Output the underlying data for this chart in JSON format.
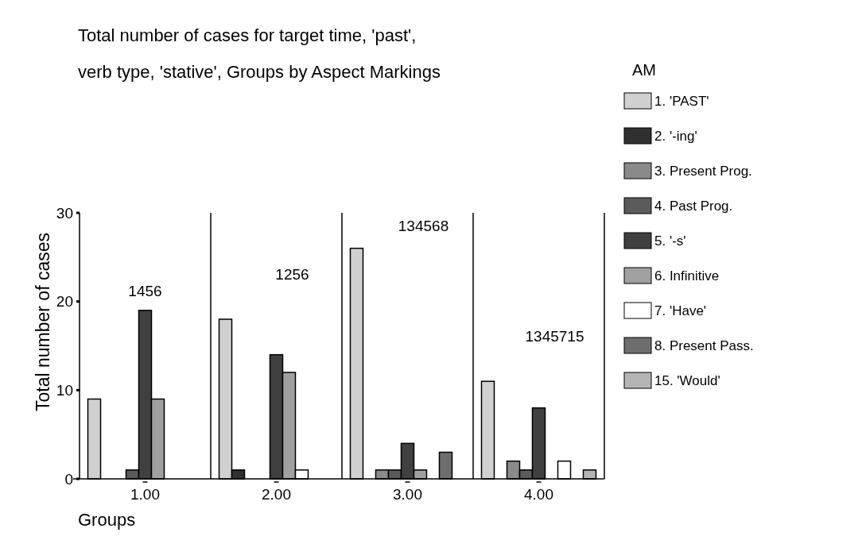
{
  "chart_data": {
    "type": "bar",
    "title": "Total number of cases for target time, 'past', verb type, 'stative', Groups by Aspect Markings",
    "xlabel": "Groups",
    "ylabel": "Total number of cases",
    "legend_title": "AM",
    "legend": "right",
    "categories": [
      "1.00",
      "2.00",
      "3.00",
      "4.00"
    ],
    "series": [
      {
        "name": "1. 'PAST'",
        "color": "#d0d0d0",
        "values": [
          9,
          18,
          26,
          11
        ]
      },
      {
        "name": "2. '-ing'",
        "color": "#303030",
        "values": [
          null,
          1,
          null,
          null
        ]
      },
      {
        "name": "3. Present Prog.",
        "color": "#8a8a8a",
        "values": [
          null,
          null,
          1,
          2
        ]
      },
      {
        "name": "4. Past Prog.",
        "color": "#5a5a5a",
        "values": [
          1,
          null,
          1,
          1
        ]
      },
      {
        "name": "5. '-s'",
        "color": "#404040",
        "values": [
          19,
          14,
          4,
          8
        ]
      },
      {
        "name": "6. Infinitive",
        "color": "#a0a0a0",
        "values": [
          9,
          12,
          1,
          null
        ]
      },
      {
        "name": "7. 'Have'",
        "color": "#ffffff",
        "values": [
          null,
          1,
          null,
          2
        ]
      },
      {
        "name": "8. Present Pass.",
        "color": "#6e6e6e",
        "values": [
          null,
          null,
          3,
          null
        ]
      },
      {
        "name": "15. 'Would'",
        "color": "#b4b4b4",
        "values": [
          null,
          null,
          null,
          1
        ]
      }
    ],
    "ylim": [
      0,
      30
    ],
    "yticks": [
      0,
      10,
      20,
      30
    ],
    "annotations": [
      "1456",
      "1256",
      "134568",
      "1345715"
    ]
  }
}
